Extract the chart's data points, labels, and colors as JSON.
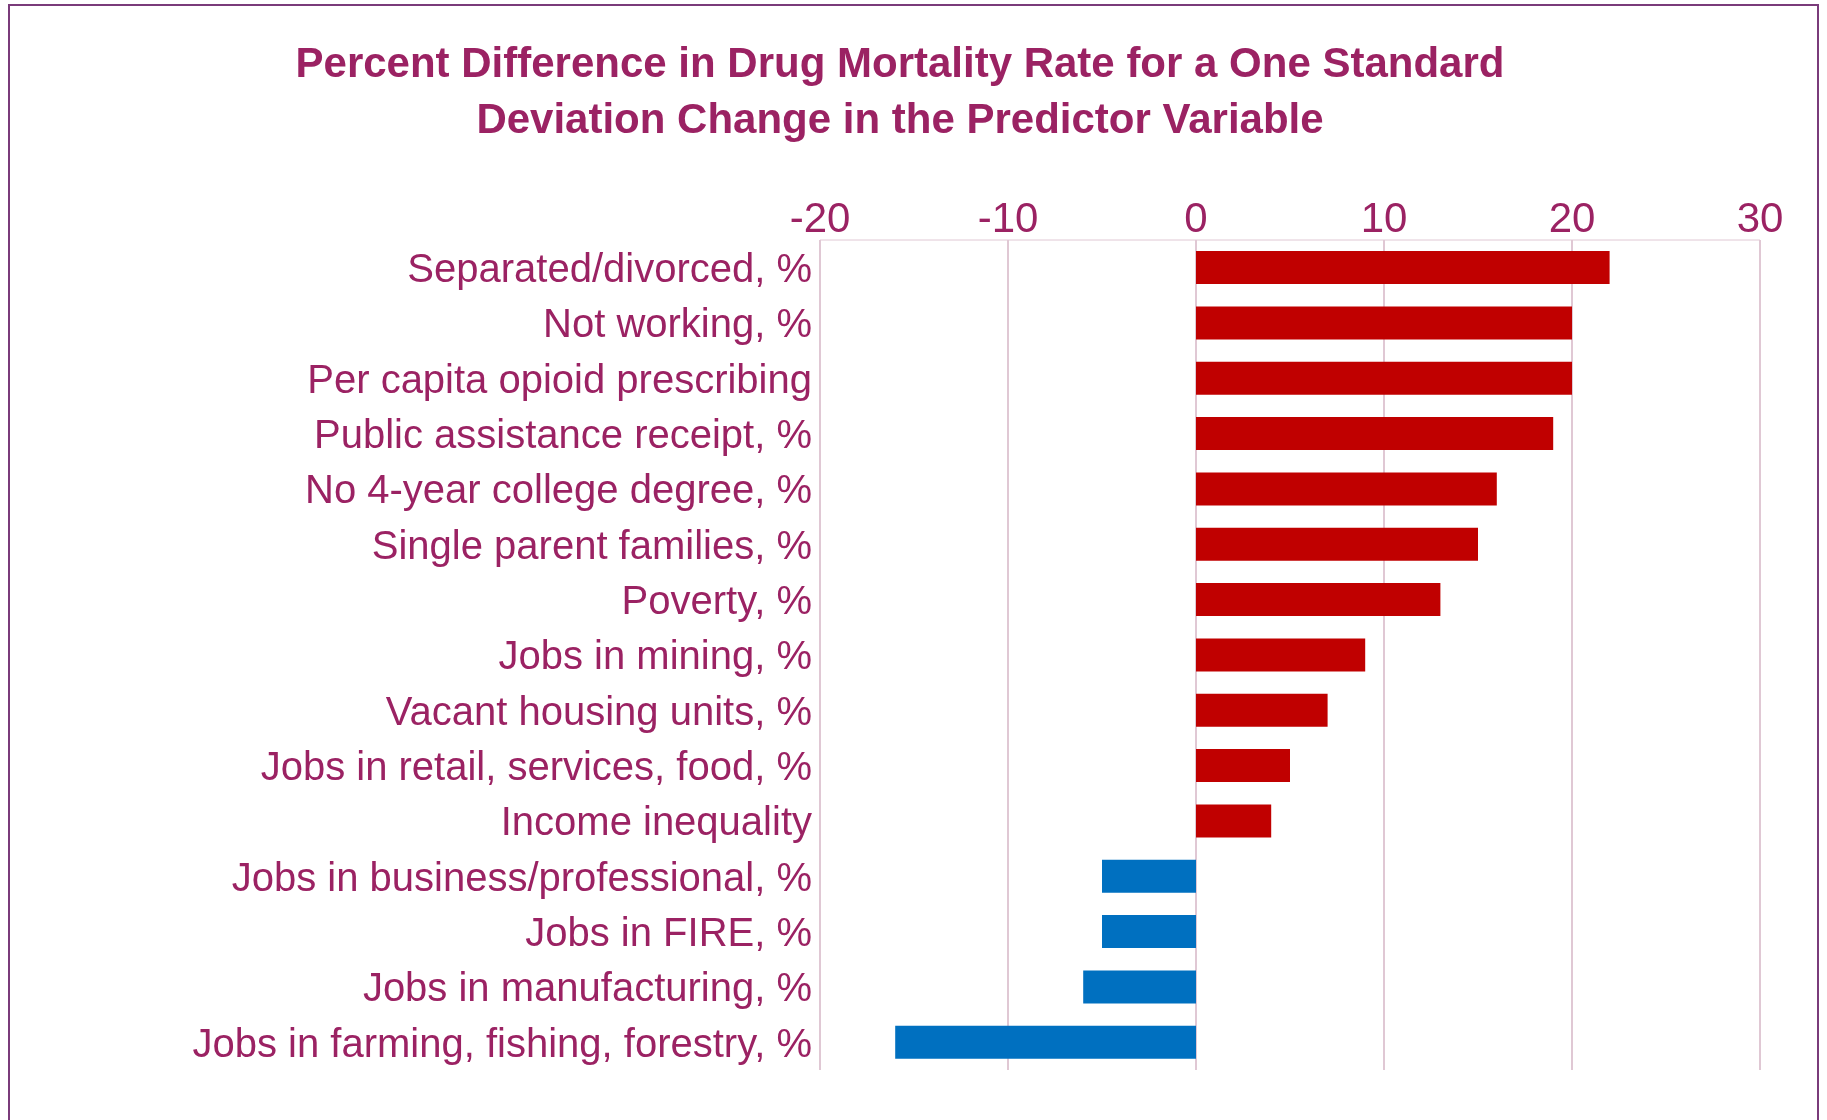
{
  "chart_data": {
    "type": "bar",
    "orientation": "horizontal",
    "title": "Percent Difference in Drug Mortality Rate for a One Standard Deviation Change in the Predictor Variable",
    "categories": [
      "Separated/divorced, %",
      "Not working, %",
      "Per capita opioid prescribing",
      "Public assistance receipt, %",
      "No 4-year college degree, %",
      "Single parent families, %",
      "Poverty, %",
      "Jobs in mining, %",
      "Vacant housing units, %",
      "Jobs in retail, services, food, %",
      "Income inequality",
      "Jobs in business/professional, %",
      "Jobs in FIRE, %",
      "Jobs in manufacturing, %",
      "Jobs in farming, fishing, forestry, %"
    ],
    "values": [
      22,
      20,
      20,
      19,
      16,
      15,
      13,
      9,
      7,
      5,
      4,
      -5,
      -5,
      -6,
      -16
    ],
    "colors": [
      "#c00000",
      "#c00000",
      "#c00000",
      "#c00000",
      "#c00000",
      "#c00000",
      "#c00000",
      "#c00000",
      "#c00000",
      "#c00000",
      "#c00000",
      "#0070c0",
      "#0070c0",
      "#0070c0",
      "#0070c0"
    ],
    "xlim": [
      -20,
      30
    ],
    "xticks": [
      -20,
      -10,
      0,
      10,
      20,
      30
    ],
    "grid": "x"
  }
}
